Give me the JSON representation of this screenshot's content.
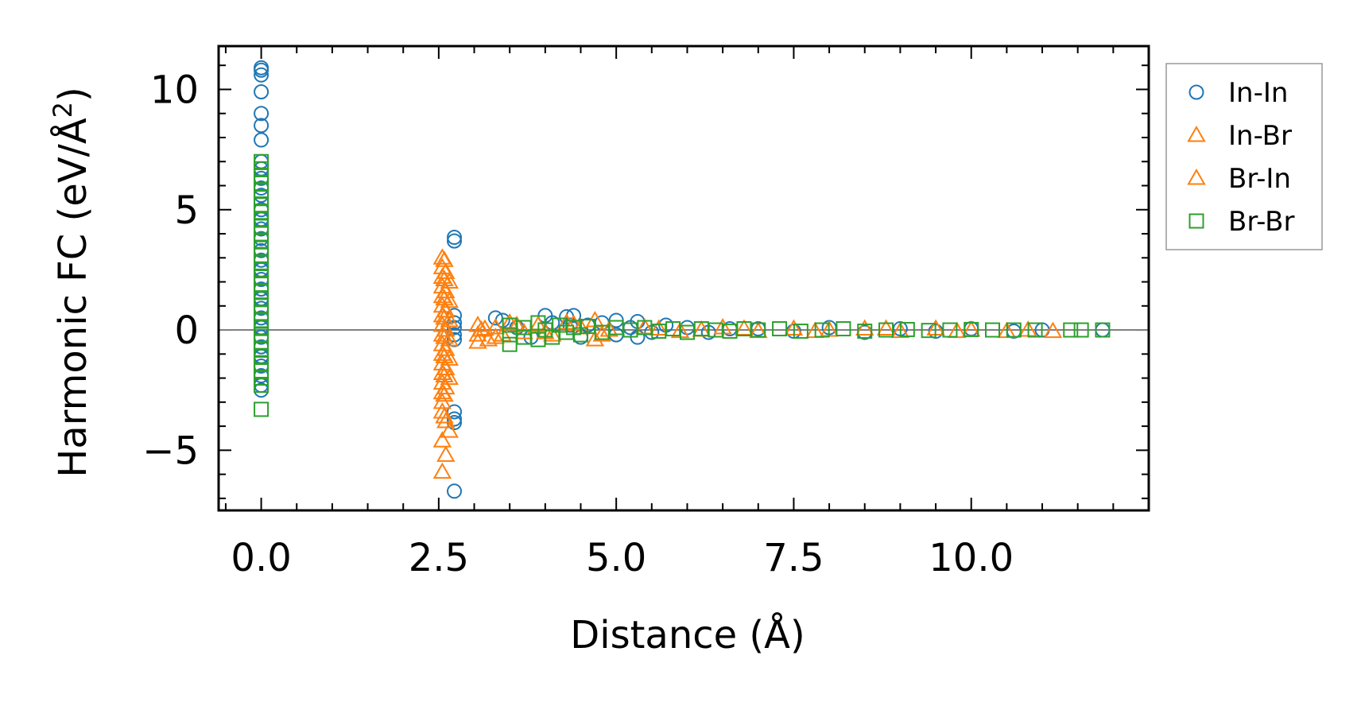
{
  "chart_data": {
    "type": "scatter",
    "title": "",
    "xlabel": "Distance (Å)",
    "ylabel_main": "Harmonic FC (eV/Å",
    "ylabel_sup": "2",
    "ylabel_close": ")",
    "xlim": [
      -0.6,
      12.5
    ],
    "ylim": [
      -7.5,
      11.8
    ],
    "xticks": [
      0.0,
      2.5,
      5.0,
      7.5,
      10.0
    ],
    "xtick_labels": [
      "0.0",
      "2.5",
      "5.0",
      "7.5",
      "10.0"
    ],
    "yticks": [
      -5,
      0,
      5,
      10
    ],
    "ytick_labels": [
      "−5",
      "0",
      "5",
      "10"
    ],
    "zero_line": 0,
    "legend_position": "outside-right-top",
    "series": [
      {
        "name": "In-In",
        "marker": "circle",
        "color": "#1f77b4",
        "points": [
          [
            0,
            10.9
          ],
          [
            0,
            10.8
          ],
          [
            0,
            10.6
          ],
          [
            0,
            9.9
          ],
          [
            0,
            9.0
          ],
          [
            0,
            8.5
          ],
          [
            0,
            7.9
          ],
          [
            0,
            7.0
          ],
          [
            0,
            6.7
          ],
          [
            0,
            6.3
          ],
          [
            0,
            5.9
          ],
          [
            0,
            5.6
          ],
          [
            0,
            5.0
          ],
          [
            0,
            4.6
          ],
          [
            0,
            4.2
          ],
          [
            0,
            3.8
          ],
          [
            0,
            3.3
          ],
          [
            0,
            2.9
          ],
          [
            0,
            2.5
          ],
          [
            0,
            2.1
          ],
          [
            0,
            1.7
          ],
          [
            0,
            1.3
          ],
          [
            0,
            0.9
          ],
          [
            0,
            0.5
          ],
          [
            0,
            0.1
          ],
          [
            0,
            -0.3
          ],
          [
            0,
            -0.7
          ],
          [
            0,
            -1.1
          ],
          [
            0,
            -1.5
          ],
          [
            0,
            -1.9
          ],
          [
            0,
            -2.3
          ],
          [
            0,
            -2.5
          ],
          [
            2.72,
            3.85
          ],
          [
            2.72,
            3.7
          ],
          [
            2.72,
            0.6
          ],
          [
            2.72,
            0.3
          ],
          [
            2.72,
            0.1
          ],
          [
            2.72,
            -0.2
          ],
          [
            2.72,
            -0.4
          ],
          [
            2.72,
            -3.4
          ],
          [
            2.72,
            -3.7
          ],
          [
            2.72,
            -3.85
          ],
          [
            2.72,
            -6.7
          ],
          [
            3.3,
            0.5
          ],
          [
            3.4,
            0.4
          ],
          [
            3.6,
            0.1
          ],
          [
            3.8,
            -0.3
          ],
          [
            4.0,
            0.6
          ],
          [
            4.1,
            0.3
          ],
          [
            4.3,
            0.55
          ],
          [
            4.35,
            0.2
          ],
          [
            4.4,
            0.6
          ],
          [
            4.5,
            -0.3
          ],
          [
            4.6,
            0.2
          ],
          [
            4.8,
            0.3
          ],
          [
            5.0,
            -0.2
          ],
          [
            5.0,
            0.4
          ],
          [
            5.2,
            0.1
          ],
          [
            5.3,
            -0.3
          ],
          [
            5.3,
            0.35
          ],
          [
            5.5,
            -0.1
          ],
          [
            5.7,
            0.2
          ],
          [
            6.0,
            0.1
          ],
          [
            6.3,
            -0.1
          ],
          [
            6.6,
            0.05
          ],
          [
            7.0,
            0.05
          ],
          [
            7.5,
            -0.05
          ],
          [
            8.0,
            0.1
          ],
          [
            8.5,
            -0.1
          ],
          [
            9.0,
            0.05
          ],
          [
            9.5,
            -0.05
          ],
          [
            10.0,
            0.05
          ],
          [
            10.6,
            -0.05
          ],
          [
            11.0,
            0.0
          ],
          [
            11.85,
            0.0
          ]
        ]
      },
      {
        "name": "In-Br",
        "marker": "triangle",
        "color": "#ff7f0e",
        "points": [
          [
            2.55,
            3.0
          ],
          [
            2.55,
            2.6
          ],
          [
            2.55,
            2.2
          ],
          [
            2.55,
            1.8
          ],
          [
            2.55,
            1.4
          ],
          [
            2.55,
            1.0
          ],
          [
            2.55,
            0.6
          ],
          [
            2.55,
            0.2
          ],
          [
            2.55,
            -0.2
          ],
          [
            2.55,
            -0.6
          ],
          [
            2.55,
            -1.0
          ],
          [
            2.55,
            -1.4
          ],
          [
            2.55,
            -1.8
          ],
          [
            2.55,
            -2.2
          ],
          [
            2.55,
            -2.6
          ],
          [
            2.55,
            -3.0
          ],
          [
            2.55,
            -3.4
          ],
          [
            2.55,
            -4.6
          ],
          [
            2.55,
            -5.9
          ],
          [
            2.6,
            2.4
          ],
          [
            2.6,
            1.6
          ],
          [
            2.6,
            0.8
          ],
          [
            2.6,
            0.0
          ],
          [
            2.6,
            -0.8
          ],
          [
            2.6,
            -1.6
          ],
          [
            2.6,
            -2.4
          ],
          [
            2.6,
            -3.8
          ],
          [
            2.6,
            -5.2
          ],
          [
            2.65,
            2.0
          ],
          [
            2.65,
            1.2
          ],
          [
            2.65,
            0.4
          ],
          [
            2.65,
            -0.4
          ],
          [
            2.65,
            -1.2
          ],
          [
            2.65,
            -2.0
          ],
          [
            2.65,
            -4.2
          ],
          [
            3.05,
            0.2
          ],
          [
            3.05,
            -0.2
          ],
          [
            3.05,
            -0.5
          ],
          [
            3.15,
            0.05
          ],
          [
            3.2,
            -0.4
          ],
          [
            3.3,
            0.1
          ],
          [
            3.4,
            -0.2
          ],
          [
            3.5,
            0.3
          ],
          [
            3.7,
            -0.1
          ],
          [
            3.9,
            0.2
          ],
          [
            4.1,
            -0.2
          ],
          [
            4.3,
            0.3
          ],
          [
            4.5,
            0.1
          ],
          [
            4.7,
            0.4
          ],
          [
            4.7,
            -0.4
          ],
          [
            4.9,
            0.0
          ],
          [
            5.4,
            0.1
          ],
          [
            5.9,
            -0.05
          ],
          [
            6.5,
            0.1
          ],
          [
            7.0,
            -0.05
          ],
          [
            7.5,
            0.05
          ],
          [
            8.0,
            0.0
          ],
          [
            8.5,
            0.05
          ],
          [
            9.0,
            -0.05
          ],
          [
            9.5,
            0.05
          ],
          [
            10.0,
            0.0
          ],
          [
            10.5,
            -0.05
          ],
          [
            11.15,
            -0.05
          ]
        ]
      },
      {
        "name": "Br-In",
        "marker": "triangle",
        "color": "#ff7f0e",
        "points": [
          [
            2.58,
            2.9
          ],
          [
            2.58,
            2.1
          ],
          [
            2.58,
            1.3
          ],
          [
            2.58,
            0.5
          ],
          [
            2.58,
            -0.3
          ],
          [
            2.58,
            -1.1
          ],
          [
            2.58,
            -1.9
          ],
          [
            2.58,
            -2.7
          ],
          [
            2.58,
            -3.6
          ],
          [
            3.1,
            0.0
          ],
          [
            3.3,
            -0.3
          ],
          [
            3.6,
            0.2
          ],
          [
            4.0,
            -0.1
          ],
          [
            4.4,
            0.25
          ],
          [
            4.8,
            -0.2
          ],
          [
            5.6,
            0.05
          ],
          [
            6.2,
            0.0
          ],
          [
            6.8,
            0.05
          ],
          [
            7.8,
            -0.05
          ],
          [
            8.8,
            0.05
          ],
          [
            9.8,
            -0.05
          ],
          [
            10.8,
            0.0
          ]
        ]
      },
      {
        "name": "Br-Br",
        "marker": "square",
        "color": "#2ca02c",
        "points": [
          [
            0,
            7.0
          ],
          [
            0,
            6.7
          ],
          [
            0,
            6.4
          ],
          [
            0,
            6.1
          ],
          [
            0,
            5.8
          ],
          [
            0,
            5.5
          ],
          [
            0,
            5.2
          ],
          [
            0,
            4.9
          ],
          [
            0,
            4.6
          ],
          [
            0,
            4.3
          ],
          [
            0,
            4.0
          ],
          [
            0,
            3.7
          ],
          [
            0,
            3.4
          ],
          [
            0,
            3.1
          ],
          [
            0,
            2.8
          ],
          [
            0,
            2.5
          ],
          [
            0,
            2.2
          ],
          [
            0,
            1.9
          ],
          [
            0,
            1.6
          ],
          [
            0,
            1.3
          ],
          [
            0,
            1.0
          ],
          [
            0,
            0.7
          ],
          [
            0,
            0.4
          ],
          [
            0,
            0.1
          ],
          [
            0,
            -0.2
          ],
          [
            0,
            -0.5
          ],
          [
            0,
            -0.8
          ],
          [
            0,
            -1.1
          ],
          [
            0,
            -1.4
          ],
          [
            0,
            -1.7
          ],
          [
            0,
            -2.0
          ],
          [
            0,
            -2.3
          ],
          [
            0,
            -3.3
          ],
          [
            3.5,
            0.2
          ],
          [
            3.5,
            -0.2
          ],
          [
            3.5,
            -0.6
          ],
          [
            3.7,
            0.1
          ],
          [
            3.7,
            -0.3
          ],
          [
            3.9,
            0.3
          ],
          [
            3.9,
            -0.4
          ],
          [
            4.0,
            0.0
          ],
          [
            4.1,
            -0.3
          ],
          [
            4.2,
            0.2
          ],
          [
            4.3,
            -0.1
          ],
          [
            4.4,
            0.1
          ],
          [
            4.5,
            -0.2
          ],
          [
            4.6,
            0.15
          ],
          [
            4.8,
            -0.1
          ],
          [
            5.0,
            0.1
          ],
          [
            5.2,
            0.0
          ],
          [
            5.4,
            0.1
          ],
          [
            5.6,
            -0.05
          ],
          [
            5.8,
            0.05
          ],
          [
            6.0,
            -0.1
          ],
          [
            6.2,
            0.05
          ],
          [
            6.4,
            0.0
          ],
          [
            6.6,
            -0.05
          ],
          [
            6.8,
            0.05
          ],
          [
            7.0,
            0.0
          ],
          [
            7.3,
            0.05
          ],
          [
            7.6,
            -0.05
          ],
          [
            7.9,
            0.0
          ],
          [
            8.2,
            0.05
          ],
          [
            8.5,
            -0.05
          ],
          [
            8.8,
            0.0
          ],
          [
            9.1,
            0.02
          ],
          [
            9.4,
            -0.02
          ],
          [
            9.7,
            0.0
          ],
          [
            10.0,
            0.02
          ],
          [
            10.3,
            0.0
          ],
          [
            10.6,
            0.0
          ],
          [
            10.9,
            0.0
          ],
          [
            11.4,
            0.0
          ],
          [
            11.55,
            0.0
          ],
          [
            11.85,
            0.0
          ]
        ]
      }
    ]
  }
}
